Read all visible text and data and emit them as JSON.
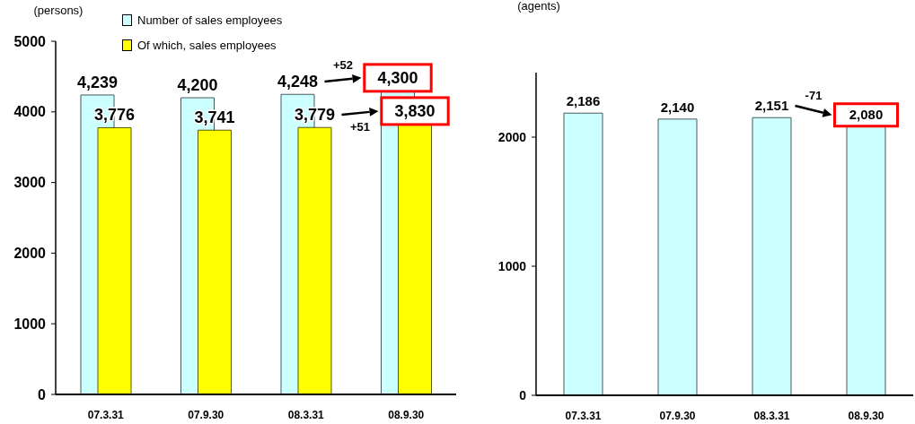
{
  "chart_data": [
    {
      "type": "bar",
      "ylabel": "(persons)",
      "categories": [
        "07.3.31",
        "07.9.30",
        "08.3.31",
        "08.9.30"
      ],
      "series": [
        {
          "name": "Number of sales employees",
          "color": "#ccffff",
          "values": [
            4239,
            4200,
            4248,
            4300
          ],
          "value_labels": [
            "4,239",
            "4,200",
            "4,248",
            "4,300"
          ]
        },
        {
          "name": "Of which, sales employees",
          "color": "#ffff00",
          "values": [
            3776,
            3741,
            3779,
            3830
          ],
          "value_labels": [
            "3,776",
            "3,741",
            "3,779",
            "3,830"
          ]
        }
      ],
      "ylim": [
        0,
        5000
      ],
      "yticks": [
        0,
        1000,
        2000,
        3000,
        4000,
        5000
      ],
      "legend": "top",
      "annotations": [
        "+52",
        "+51"
      ]
    },
    {
      "type": "bar",
      "ylabel": "(agents)",
      "categories": [
        "07.3.31",
        "07.9.30",
        "08.3.31",
        "08.9.30"
      ],
      "series": [
        {
          "color": "#ccffff",
          "values": [
            2186,
            2140,
            2151,
            2080
          ],
          "value_labels": [
            "2,186",
            "2,140",
            "2,151",
            "2,080"
          ]
        }
      ],
      "ylim": [
        0,
        2500
      ],
      "yticks": [
        0,
        1000,
        2000
      ],
      "annotations": [
        "-71"
      ]
    }
  ]
}
